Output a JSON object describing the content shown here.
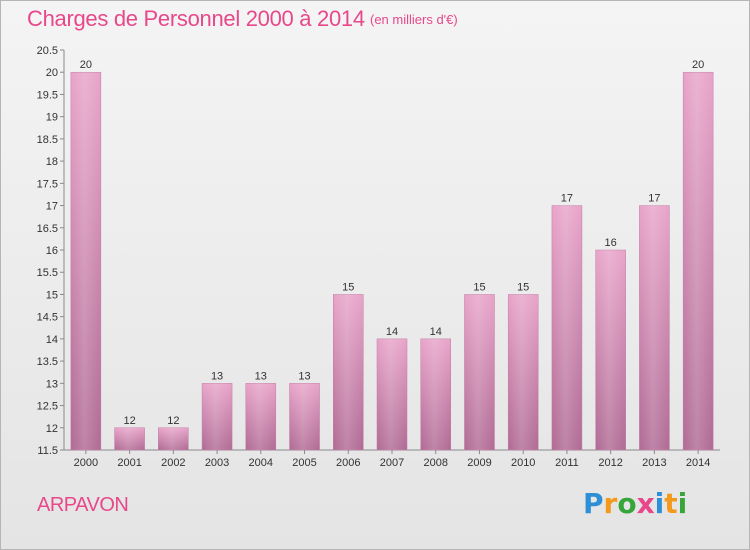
{
  "title": "Charges de Personnel 2000 à 2014",
  "unit_note": "(en milliers d'€)",
  "commune": "ARPAVON",
  "logo": {
    "text": "Proxiti",
    "letters": [
      {
        "ch": "P",
        "color": "#2f8fd6"
      },
      {
        "ch": "r",
        "color": "#f39a1c"
      },
      {
        "ch": "o",
        "color": "#37a53a"
      },
      {
        "ch": "x",
        "color": "#e8488a"
      },
      {
        "ch": "i",
        "color": "#2f8fd6"
      },
      {
        "ch": "t",
        "color": "#f39a1c"
      },
      {
        "ch": "i",
        "color": "#37a53a"
      }
    ]
  },
  "colors": {
    "accent": "#e8488a",
    "bar_top": "#e8a3c9",
    "bar_bottom": "#b06a94"
  },
  "chart_data": {
    "type": "bar",
    "categories": [
      "2000",
      "2001",
      "2002",
      "2003",
      "2004",
      "2005",
      "2006",
      "2007",
      "2008",
      "2009",
      "2010",
      "2011",
      "2012",
      "2013",
      "2014"
    ],
    "values": [
      20,
      12,
      12,
      13,
      13,
      13,
      15,
      14,
      14,
      15,
      15,
      17,
      16,
      17,
      20
    ],
    "ylim": [
      11.5,
      20.5
    ],
    "yticks": [
      "11.5",
      "12",
      "12.5",
      "13",
      "13.5",
      "14",
      "14.5",
      "15",
      "15.5",
      "16",
      "16.5",
      "17",
      "17.5",
      "18",
      "18.5",
      "19",
      "19.5",
      "20",
      "20.5"
    ],
    "grid": false
  }
}
